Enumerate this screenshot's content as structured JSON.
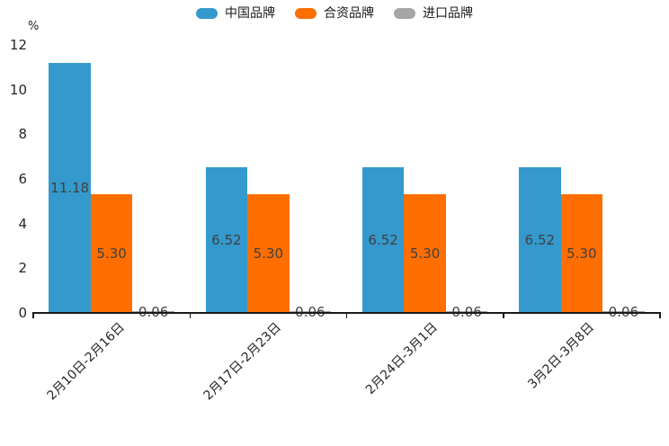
{
  "y_axis": {
    "unit": "%",
    "ticks": [
      0,
      2,
      4,
      6,
      8,
      10,
      12
    ]
  },
  "legend": {
    "items": [
      {
        "label": "中国品牌",
        "color": "#3499cd"
      },
      {
        "label": "合资品牌",
        "color": "#fe6e00"
      },
      {
        "label": "进口品牌",
        "color": "#a5a5a5"
      }
    ]
  },
  "chart_data": {
    "type": "bar",
    "title": "",
    "categories": [
      "2月10日-2月16日",
      "2月17日-2月23日",
      "2月24日-3月1日",
      "3月2日-3月8日"
    ],
    "series": [
      {
        "name": "中国品牌",
        "color": "#3499cd",
        "values": [
          11.18,
          6.52,
          6.52,
          6.52
        ],
        "labels": [
          "11.18",
          "6.52",
          "6.52",
          "6.52"
        ]
      },
      {
        "name": "合资品牌",
        "color": "#fe6e00",
        "values": [
          5.3,
          5.3,
          5.3,
          5.3
        ],
        "labels": [
          "5.30",
          "5.30",
          "5.30",
          "5.30"
        ]
      },
      {
        "name": "进口品牌",
        "color": "#a5a5a5",
        "values": [
          0.06,
          0.06,
          0.06,
          0.06
        ],
        "labels": [
          "0.06",
          "0.06",
          "0.06",
          "0.06"
        ]
      }
    ],
    "xlabel": "",
    "ylabel": "%",
    "ylim": [
      0,
      12
    ],
    "grid": false,
    "legend_position": "top",
    "value_labels": "center"
  }
}
